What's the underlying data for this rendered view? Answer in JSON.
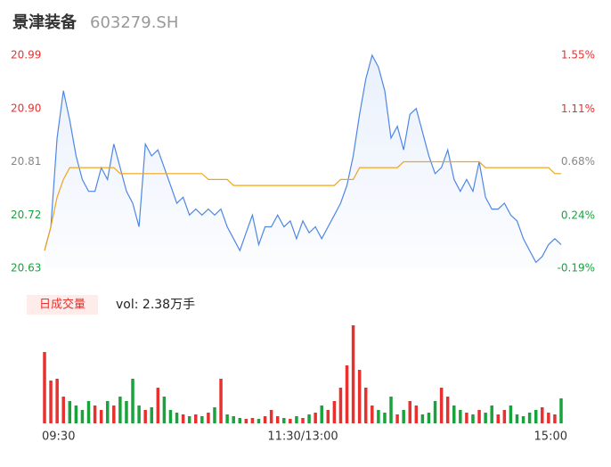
{
  "header": {
    "name": "景津装备",
    "code": "603279.SH"
  },
  "chart_data": [
    {
      "type": "line",
      "xlim": [
        0,
        240
      ],
      "xticks": [
        {
          "value": 0,
          "label": "09:30"
        },
        {
          "value": 120,
          "label": "11:30/13:00"
        },
        {
          "value": 240,
          "label": "15:00"
        }
      ],
      "ylim": [
        20.63,
        20.99
      ],
      "yticks": [
        {
          "value": 20.99,
          "label": "20.99"
        },
        {
          "value": 20.9,
          "label": "20.90"
        },
        {
          "value": 20.81,
          "label": "20.81"
        },
        {
          "value": 20.72,
          "label": "20.72"
        },
        {
          "value": 20.63,
          "label": "20.63"
        }
      ],
      "y2lim": [
        -0.19,
        1.55
      ],
      "y2ticks": [
        {
          "value": 1.55,
          "label": "1.55%"
        },
        {
          "value": 1.11,
          "label": "1.11%"
        },
        {
          "value": 0.68,
          "label": "0.68%"
        },
        {
          "value": 0.24,
          "label": "0.24%"
        },
        {
          "value": -0.19,
          "label": "-0.19%"
        }
      ],
      "up_color": "#e8312f",
      "flat_color": "#888888",
      "down_color": "#1aa33c",
      "grid": false,
      "series": [
        {
          "color": "#4e86e6",
          "fill": true,
          "values": [
            20.66,
            20.7,
            20.85,
            20.93,
            20.88,
            20.82,
            20.78,
            20.76,
            20.76,
            20.8,
            20.78,
            20.84,
            20.8,
            20.76,
            20.74,
            20.7,
            20.84,
            20.82,
            20.83,
            20.8,
            20.77,
            20.74,
            20.75,
            20.72,
            20.73,
            20.72,
            20.73,
            20.72,
            20.73,
            20.7,
            20.68,
            20.66,
            20.69,
            20.72,
            20.67,
            20.7,
            20.7,
            20.72,
            20.7,
            20.71,
            20.68,
            20.71,
            20.69,
            20.7,
            20.68,
            20.7,
            20.72,
            20.74,
            20.77,
            20.82,
            20.89,
            20.95,
            20.99,
            20.97,
            20.93,
            20.85,
            20.87,
            20.83,
            20.89,
            20.9,
            20.86,
            20.82,
            20.79,
            20.8,
            20.83,
            20.78,
            20.76,
            20.78,
            20.76,
            20.81,
            20.75,
            20.73,
            20.73,
            20.74,
            20.72,
            20.71,
            20.68,
            20.66,
            20.64,
            20.65,
            20.67,
            20.68,
            20.67
          ]
        },
        {
          "color": "#f0a51a",
          "fill": false,
          "values": [
            20.66,
            20.7,
            20.75,
            20.78,
            20.8,
            20.8,
            20.8,
            20.8,
            20.8,
            20.8,
            20.8,
            20.8,
            20.79,
            20.79,
            20.79,
            20.79,
            20.79,
            20.79,
            20.79,
            20.79,
            20.79,
            20.79,
            20.79,
            20.79,
            20.79,
            20.79,
            20.78,
            20.78,
            20.78,
            20.78,
            20.77,
            20.77,
            20.77,
            20.77,
            20.77,
            20.77,
            20.77,
            20.77,
            20.77,
            20.77,
            20.77,
            20.77,
            20.77,
            20.77,
            20.77,
            20.77,
            20.77,
            20.78,
            20.78,
            20.78,
            20.8,
            20.8,
            20.8,
            20.8,
            20.8,
            20.8,
            20.8,
            20.81,
            20.81,
            20.81,
            20.81,
            20.81,
            20.81,
            20.81,
            20.81,
            20.81,
            20.81,
            20.81,
            20.81,
            20.81,
            20.8,
            20.8,
            20.8,
            20.8,
            20.8,
            20.8,
            20.8,
            20.8,
            20.8,
            20.8,
            20.8,
            20.79,
            20.79
          ]
        }
      ]
    },
    {
      "type": "bar",
      "label": "日成交量",
      "annotation": "vol: 2.38万手",
      "ylim": [
        0,
        110
      ],
      "values": [
        80,
        48,
        50,
        30,
        25,
        20,
        15,
        25,
        20,
        15,
        25,
        20,
        30,
        25,
        50,
        20,
        15,
        18,
        40,
        30,
        15,
        12,
        10,
        8,
        10,
        8,
        12,
        18,
        50,
        10,
        8,
        6,
        5,
        6,
        5,
        8,
        15,
        8,
        6,
        5,
        8,
        6,
        10,
        12,
        20,
        15,
        25,
        40,
        65,
        110,
        60,
        40,
        20,
        15,
        12,
        30,
        10,
        15,
        25,
        20,
        10,
        12,
        25,
        40,
        30,
        20,
        15,
        12,
        10,
        15,
        12,
        20,
        10,
        15,
        20,
        10,
        8,
        12,
        15,
        18,
        12,
        10,
        28
      ]
    }
  ]
}
